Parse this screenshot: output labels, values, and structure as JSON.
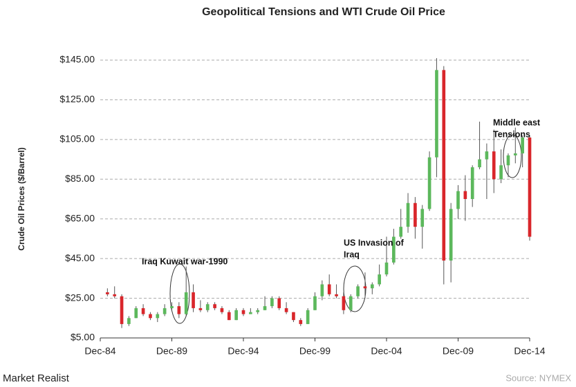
{
  "chart_data": {
    "type": "candlestick",
    "title": "Geopolitical  Tensions  and WTI Crude Oil Price",
    "y_label": "Crude Oil Prices ($/Barrel)",
    "source": "Source: NYMEX",
    "brand": "Market Realist",
    "up_color": "#5cb85c",
    "down_color": "#d9262b",
    "grid": true,
    "xlim": [
      "1984-12",
      "2014-12"
    ],
    "xticks": [
      {
        "value": "1984-12",
        "label": "Dec-84"
      },
      {
        "value": "1989-12",
        "label": "Dec-89"
      },
      {
        "value": "1994-12",
        "label": "Dec-94"
      },
      {
        "value": "1999-12",
        "label": "Dec-99"
      },
      {
        "value": "2004-12",
        "label": "Dec-04"
      },
      {
        "value": "2009-12",
        "label": "Dec-09"
      },
      {
        "value": "2014-12",
        "label": "Dec-14"
      }
    ],
    "ylim": [
      5,
      145
    ],
    "yticks": [
      {
        "value": 5,
        "label": "$5.00"
      },
      {
        "value": 25,
        "label": "$25.00"
      },
      {
        "value": 45,
        "label": "$45.00"
      },
      {
        "value": 65,
        "label": "$65.00"
      },
      {
        "value": 85,
        "label": "$85.00"
      },
      {
        "value": 105,
        "label": "$105.00"
      },
      {
        "value": 125,
        "label": "$125.00"
      },
      {
        "value": 145,
        "label": "$145.00"
      }
    ],
    "x": [
      "1985-06",
      "1985-12",
      "1986-06",
      "1986-12",
      "1987-06",
      "1987-12",
      "1988-06",
      "1988-12",
      "1989-06",
      "1989-12",
      "1990-06",
      "1990-12",
      "1991-06",
      "1991-12",
      "1992-06",
      "1992-12",
      "1993-06",
      "1993-12",
      "1994-06",
      "1994-12",
      "1995-06",
      "1995-12",
      "1996-06",
      "1996-12",
      "1997-06",
      "1997-12",
      "1998-06",
      "1998-12",
      "1999-06",
      "1999-12",
      "2000-06",
      "2000-12",
      "2001-06",
      "2001-12",
      "2002-06",
      "2002-12",
      "2003-06",
      "2003-12",
      "2004-06",
      "2004-12",
      "2005-06",
      "2005-12",
      "2006-06",
      "2006-12",
      "2007-06",
      "2007-12",
      "2008-06",
      "2008-12",
      "2009-06",
      "2009-12",
      "2010-06",
      "2010-12",
      "2011-06",
      "2011-12",
      "2012-06",
      "2012-12",
      "2013-06",
      "2013-12",
      "2014-06",
      "2014-12"
    ],
    "open": [
      28,
      27,
      26,
      12,
      15,
      20,
      17,
      15,
      17,
      20,
      21,
      17,
      28,
      20,
      19,
      22,
      20,
      18,
      14,
      19,
      17,
      18,
      19,
      21,
      25,
      20,
      18,
      14,
      12,
      19,
      26,
      32,
      27,
      26,
      19,
      26,
      31,
      30,
      32,
      37,
      43,
      56,
      61,
      73,
      61,
      70,
      96,
      140,
      44,
      70,
      79,
      75,
      91,
      95,
      99,
      85,
      92,
      97,
      98,
      106
    ],
    "high": [
      30,
      31,
      27,
      16,
      21,
      22,
      18,
      18,
      22,
      23,
      23,
      41,
      32,
      24,
      23,
      23,
      21,
      19,
      20,
      20,
      20,
      20,
      26,
      26,
      26,
      23,
      18,
      15,
      20,
      28,
      34,
      37,
      32,
      28,
      27,
      32,
      38,
      33,
      42,
      56,
      60,
      70,
      78,
      76,
      72,
      99,
      146,
      142,
      73,
      82,
      87,
      92,
      114,
      103,
      110,
      100,
      98,
      111,
      107,
      107
    ],
    "low": [
      26,
      25,
      10,
      11,
      15,
      16,
      14,
      13,
      16,
      19,
      15,
      16,
      18,
      18,
      18,
      19,
      17,
      14,
      14,
      16,
      17,
      17,
      19,
      20,
      19,
      17,
      13,
      11,
      12,
      19,
      24,
      26,
      25,
      17,
      18,
      25,
      25,
      27,
      31,
      36,
      42,
      55,
      58,
      55,
      50,
      69,
      86,
      32,
      33,
      65,
      64,
      71,
      90,
      75,
      78,
      83,
      86,
      93,
      91,
      54
    ],
    "close": [
      27,
      26,
      12,
      15,
      20,
      17,
      15,
      17,
      20,
      21,
      17,
      28,
      20,
      19,
      22,
      20,
      18,
      14,
      19,
      17,
      18,
      19,
      21,
      25,
      20,
      18,
      14,
      12,
      19,
      26,
      32,
      27,
      26,
      19,
      26,
      31,
      30,
      32,
      37,
      43,
      56,
      61,
      73,
      61,
      70,
      96,
      140,
      44,
      70,
      79,
      75,
      91,
      95,
      99,
      85,
      92,
      97,
      98,
      106,
      56
    ],
    "annotations": [
      {
        "lines": [
          "Iraq Kuwait war-1990"
        ]
      },
      {
        "lines": [
          "US Invasion of",
          "Iraq"
        ]
      },
      {
        "lines": [
          "Middle east",
          "Tensions"
        ]
      }
    ]
  }
}
